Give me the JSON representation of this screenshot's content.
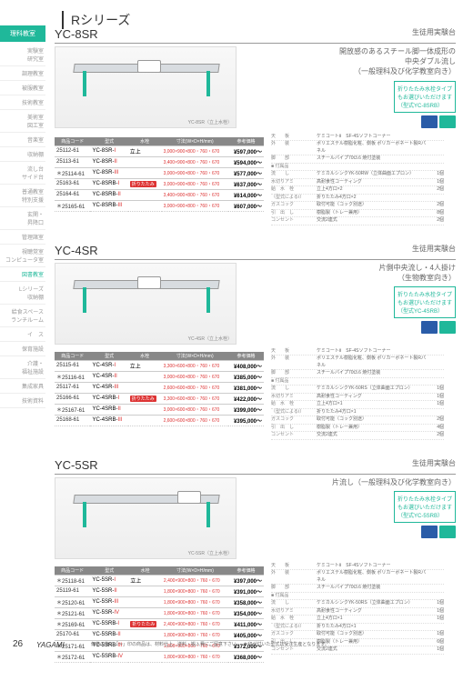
{
  "series_title": "Rシリーズ",
  "sidebar": {
    "active": "理科教室",
    "items": [
      "実験室\n研究室",
      "調理教室",
      "被服教室",
      "技術教室",
      "美術室\n図工室",
      "音楽室",
      "収納棚",
      "流し台\nサイド台",
      "普通教室\n特別支援",
      "玄関・\n昇降口",
      "管理諸室",
      "視聴覚室\nコンピュータ室",
      "図書教室",
      "Lシリーズ\n収納棚",
      "給食スペース\nランチルーム",
      "イ　ス",
      "保育施設",
      "介護・\n福祉施設",
      "集成家具",
      "技術資料"
    ],
    "l_index": 12
  },
  "products": [
    {
      "model": "YC-8SR",
      "category": "生徒用実験台",
      "desc": [
        "開放感のあるスチール脚一体成形の",
        "中央ダブル流し",
        "（一般理科及び化学教室向き）"
      ],
      "note": [
        "折りたたみ水栓タイプ",
        "もお選びいただけます",
        "（型式YC-8SRB）"
      ],
      "img_caption": "YC-8SR（立上水栓）",
      "rows": [
        {
          "code": "25112-61",
          "type": "YC-8SR-I",
          "tap": "立上",
          "dims": "3,000×900×800・760・670",
          "price": "¥597,000～"
        },
        {
          "code": "25113-61",
          "type": "YC-8SR-II",
          "tap": "",
          "dims": "3,400×900×800・760・670",
          "price": "¥594,000～"
        },
        {
          "code": "＊25114-61",
          "type": "YC-8SR-III",
          "tap": "",
          "dims": "3,000×900×800・760・670",
          "price": "¥577,000～"
        },
        {
          "code": "25163-61",
          "type": "YC-8SRB-I",
          "tap": "折りたたみ",
          "dims": "3,000×900×800・760・670",
          "price": "¥637,000～"
        },
        {
          "code": "25164-61",
          "type": "YC-8SRB-II",
          "tap": "",
          "dims": "3,400×900×800・760・670",
          "price": "¥614,000～"
        },
        {
          "code": "＊25165-61",
          "type": "YC-8SRB-III",
          "tap": "",
          "dims": "3,000×900×800・760・670",
          "price": "¥607,000～"
        }
      ],
      "specs": [
        {
          "l": "天　　板",
          "r": "ケミコートⅡ　SF-4Sソフトコーナー",
          "q": ""
        },
        {
          "l": "外　　装",
          "r": "ポリエステル樹脂化粧、側板 ポリカーボネート製Rパネル",
          "q": ""
        },
        {
          "l": "脚　　部",
          "r": "スチールパイプ70t3.6 焼付塗装",
          "q": ""
        },
        {
          "l": "■ 付属品",
          "r": "",
          "q": ""
        },
        {
          "l": "流　　し",
          "r": "ケミカルシンクYK-50RW（立体曲面エプロン）",
          "q": "1個"
        },
        {
          "l": "水切りアミ",
          "r": "高耐食性コーティング",
          "q": "1個"
        },
        {
          "l": "給　水　栓",
          "r": "立上4方口×2",
          "q": "2個"
        },
        {
          "l": "（型式によるⅠ）",
          "r": "折りたたみ4方口×2",
          "q": ""
        },
        {
          "l": "ガスコック",
          "r": "取付可能（コック別途）",
          "q": "2個"
        },
        {
          "l": "引　出　し",
          "r": "樹脂製（トレー兼用）",
          "q": "8個"
        },
        {
          "l": "コンセント",
          "r": "交流2連式",
          "q": "2個"
        }
      ]
    },
    {
      "model": "YC-4SR",
      "category": "生徒用実験台",
      "desc": [
        "片側中央流し・4人掛け",
        "（生物教室向き）"
      ],
      "note": [
        "折りたたみ水栓タイプ",
        "もお選びいただけます",
        "（型式YC-4SRB）"
      ],
      "img_caption": "YC-4SR（立上水栓）",
      "rows": [
        {
          "code": "25115-61",
          "type": "YC-4SR-I",
          "tap": "立上",
          "dims": "3,300×600×800・760・670",
          "price": "¥408,000～"
        },
        {
          "code": "＊25116-61",
          "type": "YC-4SR-II",
          "tap": "",
          "dims": "3,000×600×800・760・670",
          "price": "¥385,000～"
        },
        {
          "code": "25117-61",
          "type": "YC-4SR-III",
          "tap": "",
          "dims": "2,600×600×800・760・670",
          "price": "¥381,000～"
        },
        {
          "code": "25166-61",
          "type": "YC-4SRB-I",
          "tap": "折りたたみ",
          "dims": "3,300×600×800・760・670",
          "price": "¥422,000～"
        },
        {
          "code": "＊25167-61",
          "type": "YC-4SRB-II",
          "tap": "",
          "dims": "3,000×600×800・760・670",
          "price": "¥399,000～"
        },
        {
          "code": "25168-61",
          "type": "YC-4SRB-III",
          "tap": "",
          "dims": "2,600×600×800・760・670",
          "price": "¥395,000～"
        }
      ],
      "specs": [
        {
          "l": "天　　板",
          "r": "ケミコートⅡ　SF-4Sソフトコーナー",
          "q": ""
        },
        {
          "l": "外　　装",
          "r": "ポリエステル樹脂化粧、側板 ポリカーボネート製Rパネル",
          "q": ""
        },
        {
          "l": "脚　　部",
          "r": "スチールパイプ70t3.6 焼付塗装",
          "q": ""
        },
        {
          "l": "■ 付属品",
          "r": "",
          "q": ""
        },
        {
          "l": "流　　し",
          "r": "ケミカルシンクYK-50RS（立体曲面エプロン）",
          "q": "1個"
        },
        {
          "l": "水切りアミ",
          "r": "高耐食性コーティング",
          "q": "1個"
        },
        {
          "l": "給　水　栓",
          "r": "立上4方口×1",
          "q": "1個"
        },
        {
          "l": "（型式によるⅠ）",
          "r": "折りたたみ4方口×1",
          "q": ""
        },
        {
          "l": "ガスコック",
          "r": "取付可能（コック別途）",
          "q": "2個"
        },
        {
          "l": "引　出　し",
          "r": "樹脂製（トレー兼用）",
          "q": "4個"
        },
        {
          "l": "コンセント",
          "r": "交流2連式",
          "q": "2個"
        }
      ]
    },
    {
      "model": "YC-5SR",
      "category": "生徒用実験台",
      "desc": [
        "片流し（一般理科及び化学教室向き）"
      ],
      "note": [
        "折りたたみ水栓タイプ",
        "もお選びいただけます",
        "（型式YC-5SRB）"
      ],
      "img_caption": "YC-5SR（立上水栓）",
      "rows": [
        {
          "code": "＊25118-61",
          "type": "YC-5SR-I",
          "tap": "立上",
          "dims": "2,400×900×800・760・670",
          "price": "¥397,000～"
        },
        {
          "code": "25119-61",
          "type": "YC-5SR-II",
          "tap": "",
          "dims": "1,800×900×800・760・670",
          "price": "¥391,000～"
        },
        {
          "code": "＊25120-61",
          "type": "YC-5SR-III",
          "tap": "",
          "dims": "1,800×900×800・760・670",
          "price": "¥358,000～"
        },
        {
          "code": "＊25121-61",
          "type": "YC-5SR-IV",
          "tap": "",
          "dims": "1,800×900×800・760・670",
          "price": "¥354,000～"
        },
        {
          "code": "＊25169-61",
          "type": "YC-5SRB-I",
          "tap": "折りたたみ",
          "dims": "2,400×900×800・760・670",
          "price": "¥411,000～"
        },
        {
          "code": "25170-61",
          "type": "YC-5SRB-II",
          "tap": "",
          "dims": "1,800×900×800・760・670",
          "price": "¥405,000～"
        },
        {
          "code": "＊25171-61",
          "type": "YC-5SRB-III",
          "tap": "",
          "dims": "1,800×900×800・760・670",
          "price": "¥372,000～"
        },
        {
          "code": "＊25172-61",
          "type": "YC-5SRB-IV",
          "tap": "",
          "dims": "1,800×900×800・760・670",
          "price": "¥368,000～"
        }
      ],
      "specs": [
        {
          "l": "天　　板",
          "r": "ケミコートⅡ　SF-4Sソフトコーナー",
          "q": ""
        },
        {
          "l": "外　　装",
          "r": "ポリエステル樹脂化粧、側板 ポリカーボネート製Rパネル",
          "q": ""
        },
        {
          "l": "脚　　部",
          "r": "スチールパイプ70t3.6 焼付塗装",
          "q": ""
        },
        {
          "l": "■ 付属品",
          "r": "",
          "q": ""
        },
        {
          "l": "流　　し",
          "r": "ケミカルシンクYK-50RS（立体曲面エプロン）",
          "q": "1個"
        },
        {
          "l": "水切りアミ",
          "r": "高耐食性コーティング",
          "q": "1個"
        },
        {
          "l": "給　水　栓",
          "r": "立上4方口×1",
          "q": "1個"
        },
        {
          "l": "（型式によるⅠ）",
          "r": "折りたたみ4方口×1",
          "q": ""
        },
        {
          "l": "ガスコック",
          "r": "取付可能（コック別途）",
          "q": "1個"
        },
        {
          "l": "引　出　し",
          "r": "樹脂製（トレー兼用）",
          "q": "6個"
        },
        {
          "l": "コンセント",
          "r": "交流2連式",
          "q": "1個"
        }
      ]
    }
  ],
  "table_headers": {
    "code": "商品コード",
    "type": "型式",
    "tap": "水栓",
    "dims": "寸法(W×D×H/mm)",
    "price": "参考価格"
  },
  "page_num": "26",
  "brand": "YAGAMI",
  "footnote": "価格の後に「〜」印の商品は、材料仕上、送料・搬入費にご留意下さい。　★印が付いた型式は受注生産となります。"
}
